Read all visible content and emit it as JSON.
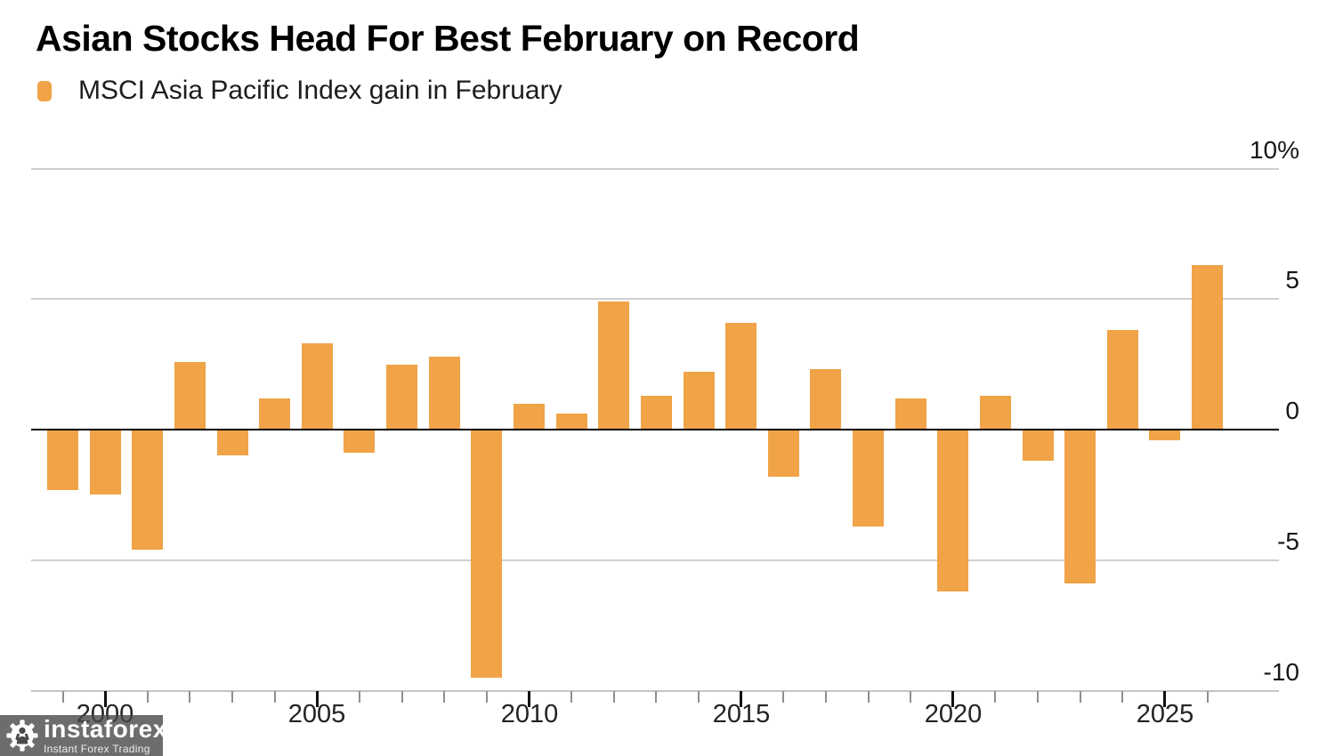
{
  "header": {
    "title": "Asian Stocks Head For Best February on Record",
    "legend": {
      "label": "MSCI Asia Pacific Index gain in February",
      "swatch_color": "#F0A347"
    }
  },
  "watermark": {
    "brand": "instaforex",
    "tagline": "Instant Forex Trading",
    "icon": "instaforex-gear-logo"
  },
  "chart_data": {
    "type": "bar",
    "title": "Asian Stocks Head For Best February on Record",
    "series_name": "MSCI Asia Pacific Index gain in February",
    "unit": "%",
    "x": [
      1999,
      2000,
      2001,
      2002,
      2003,
      2004,
      2005,
      2006,
      2007,
      2008,
      2009,
      2010,
      2011,
      2012,
      2013,
      2014,
      2015,
      2016,
      2017,
      2018,
      2019,
      2020,
      2021,
      2022,
      2023,
      2024,
      2025,
      2026
    ],
    "values": [
      -2.3,
      -2.5,
      -4.6,
      2.6,
      -1.0,
      1.2,
      3.3,
      -0.9,
      2.5,
      2.8,
      -9.5,
      1.0,
      0.6,
      4.9,
      1.3,
      2.2,
      4.1,
      -1.8,
      2.3,
      -3.7,
      1.2,
      -6.2,
      1.3,
      -1.2,
      -5.9,
      3.8,
      -0.4,
      6.3
    ],
    "ylim": [
      -10,
      10
    ],
    "ytick_values": [
      10,
      5,
      0,
      -5,
      -10
    ],
    "ytick_labels": [
      "10%",
      "5",
      "0",
      "-5",
      "-10"
    ],
    "xtick_years": [
      2000,
      2005,
      2010,
      2015,
      2020,
      2025
    ],
    "xtick_labels": [
      "2000",
      "2005",
      "2010",
      "2015",
      "2020",
      "2025"
    ],
    "bar_color": "#F0A347",
    "grid": "horizontal",
    "legend_position": "top-left"
  }
}
